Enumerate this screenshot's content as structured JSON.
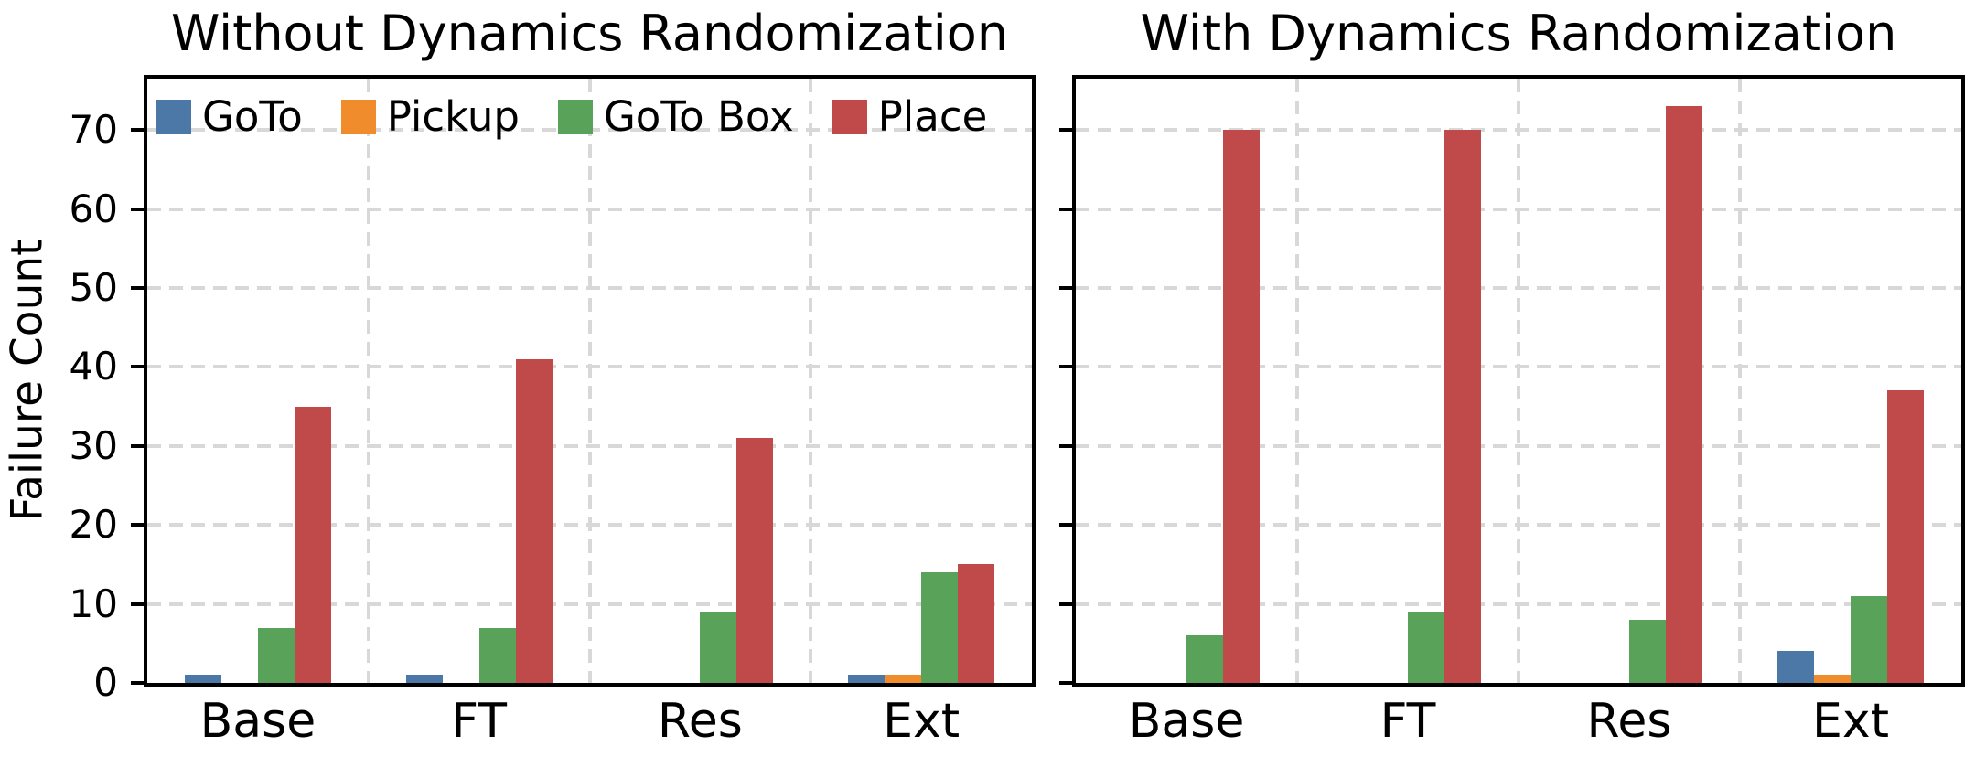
{
  "figure": {
    "ylabel": "Failure Count",
    "y_ticks": [
      0,
      10,
      20,
      30,
      40,
      50,
      60,
      70
    ],
    "y_max": 76.5,
    "categories": [
      "Base",
      "FT",
      "Res",
      "Ext"
    ],
    "legend": [
      {
        "label": "GoTo",
        "color": "#4C78A8"
      },
      {
        "label": "Pickup",
        "color": "#F18C2C"
      },
      {
        "label": "GoTo Box",
        "color": "#59A25A"
      },
      {
        "label": "Place",
        "color": "#C04A4A"
      }
    ],
    "grid_color": "#d8d8d8",
    "spine_color": "#000000"
  },
  "chart_data": [
    {
      "type": "bar",
      "title": "Without Dynamics Randomization",
      "ylabel": "Failure Count",
      "xlabel": "",
      "categories": [
        "Base",
        "FT",
        "Res",
        "Ext"
      ],
      "series": [
        {
          "name": "GoTo",
          "color": "#4C78A8",
          "values": [
            1,
            1,
            0,
            1
          ]
        },
        {
          "name": "Pickup",
          "color": "#F18C2C",
          "values": [
            0,
            0,
            0,
            1
          ]
        },
        {
          "name": "GoTo Box",
          "color": "#59A25A",
          "values": [
            7,
            7,
            9,
            14
          ]
        },
        {
          "name": "Place",
          "color": "#C04A4A",
          "values": [
            35,
            41,
            31,
            15
          ]
        }
      ],
      "ylim": [
        0,
        76.5
      ],
      "grid": true,
      "legend_position": "upper-left"
    },
    {
      "type": "bar",
      "title": "With Dynamics Randomization",
      "ylabel": "",
      "xlabel": "",
      "categories": [
        "Base",
        "FT",
        "Res",
        "Ext"
      ],
      "series": [
        {
          "name": "GoTo",
          "color": "#4C78A8",
          "values": [
            0,
            0,
            0,
            4
          ]
        },
        {
          "name": "Pickup",
          "color": "#F18C2C",
          "values": [
            0,
            0,
            0,
            1
          ]
        },
        {
          "name": "GoTo Box",
          "color": "#59A25A",
          "values": [
            6,
            9,
            8,
            11
          ]
        },
        {
          "name": "Place",
          "color": "#C04A4A",
          "values": [
            70,
            70,
            73,
            37
          ]
        }
      ],
      "ylim": [
        0,
        76.5
      ],
      "grid": true,
      "legend_position": "none"
    }
  ]
}
